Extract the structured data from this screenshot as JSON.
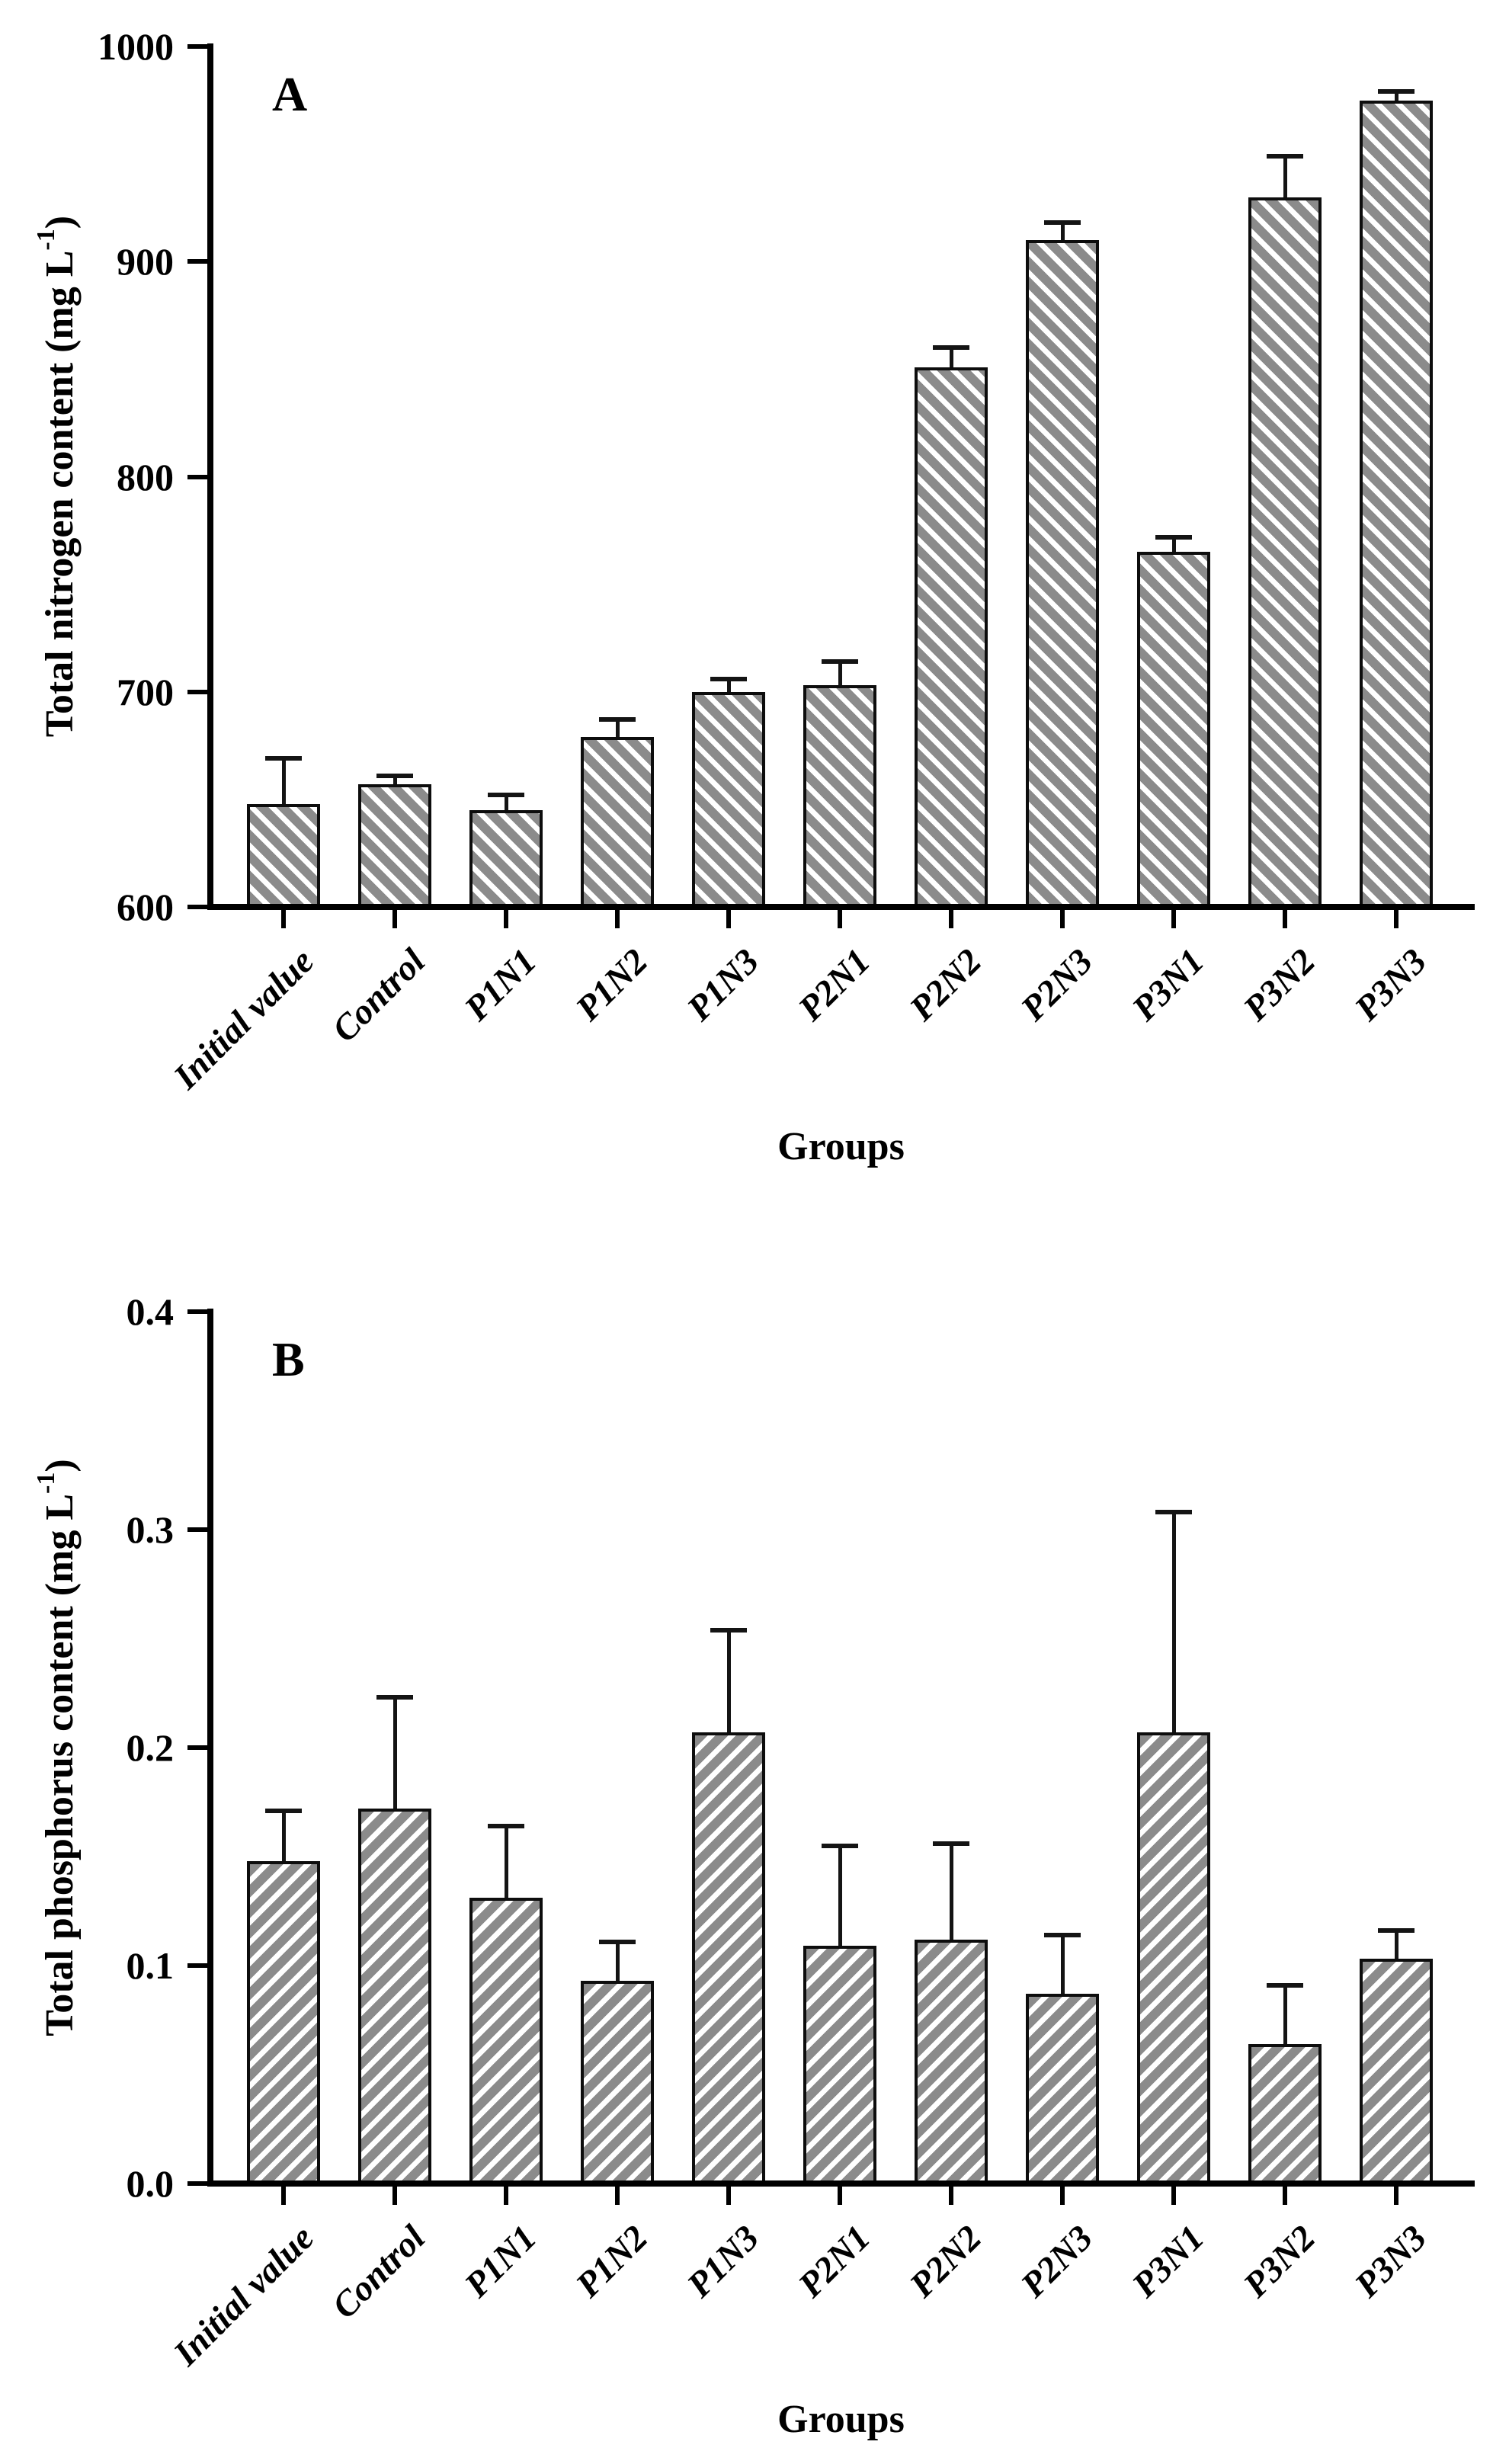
{
  "page": {
    "background": "#ffffff"
  },
  "chart_data": [
    {
      "panel": "A",
      "type": "bar",
      "title": "",
      "xlabel": "Groups",
      "ylabel_base": "Total nitrogen content (mg L",
      "ylabel_sup": "-1",
      "ylabel_close": ")",
      "categories": [
        "Initial value",
        "Control",
        "P1N1",
        "P1N2",
        "P1N3",
        "P2N1",
        "P2N2",
        "P2N3",
        "P3N1",
        "P3N2",
        "P3N3"
      ],
      "values": [
        648,
        657,
        645,
        679,
        700,
        703,
        851,
        910,
        765,
        930,
        975
      ],
      "errors_up": [
        21,
        4,
        7,
        8,
        6,
        11,
        9,
        8,
        7,
        19,
        4
      ],
      "ylim": [
        600,
        1000
      ],
      "yticks": [
        600,
        700,
        800,
        900,
        1000
      ],
      "ytick_labels": [
        "600",
        "700",
        "800",
        "900",
        "1000"
      ],
      "bar_fill": "#8b8b8b",
      "hatch_stripe": "#ffffff",
      "hatch_direction": "backslash",
      "grid": "off",
      "legend": "none"
    },
    {
      "panel": "B",
      "type": "bar",
      "title": "",
      "xlabel": "Groups",
      "ylabel_base": "Total phosphorus content (mg L",
      "ylabel_sup": "-1",
      "ylabel_close": ")",
      "categories": [
        "Initial value",
        "Control",
        "P1N1",
        "P1N2",
        "P1N3",
        "P2N1",
        "P2N2",
        "P2N3",
        "P3N1",
        "P3N2",
        "P3N3"
      ],
      "values": [
        0.148,
        0.172,
        0.131,
        0.093,
        0.207,
        0.109,
        0.112,
        0.087,
        0.207,
        0.064,
        0.103
      ],
      "errors_up": [
        0.023,
        0.051,
        0.033,
        0.018,
        0.047,
        0.046,
        0.044,
        0.027,
        0.101,
        0.027,
        0.013
      ],
      "ylim": [
        0,
        0.4
      ],
      "yticks": [
        0,
        0.1,
        0.2,
        0.3,
        0.4
      ],
      "ytick_labels": [
        "0.0",
        "0.1",
        "0.2",
        "0.3",
        "0.4"
      ],
      "bar_fill": "#8b8b8b",
      "hatch_stripe": "#ffffff",
      "hatch_direction": "slash",
      "grid": "off",
      "legend": "none"
    }
  ]
}
